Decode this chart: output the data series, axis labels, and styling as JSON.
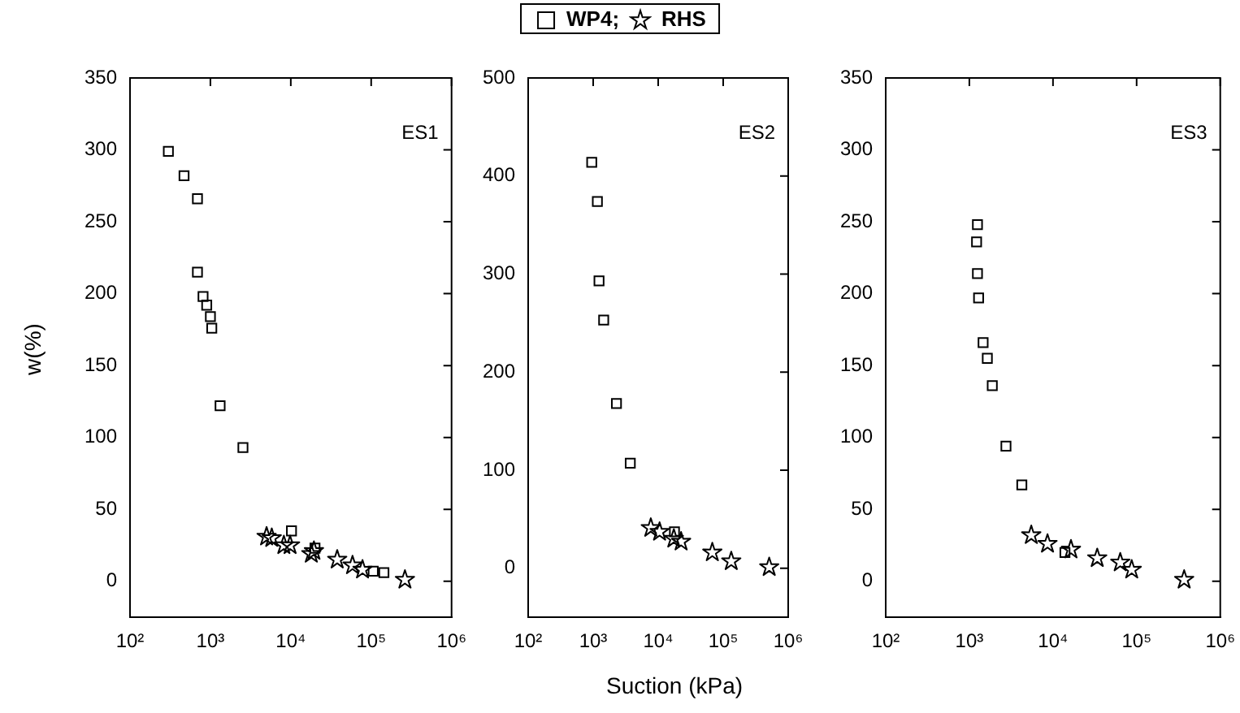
{
  "chart_data": [
    {
      "type": "scatter",
      "ylabel": "w(%)",
      "annotations": [
        "ES1"
      ],
      "legend": "top",
      "grid": false,
      "xlim": [
        100,
        1000000
      ],
      "xticks": [
        {
          "value": 100,
          "label": "10²"
        },
        {
          "value": 1000,
          "label": "10³"
        },
        {
          "value": 10000,
          "label": "10⁴"
        },
        {
          "value": 100000,
          "label": "10⁵"
        },
        {
          "value": 1000000,
          "label": "10⁶"
        }
      ],
      "ylim": [
        -25,
        350
      ],
      "yticks": [
        0,
        50,
        100,
        150,
        200,
        250,
        300,
        350
      ],
      "log": "x",
      "series": [
        {
          "name": "WP4;",
          "color": "#000000",
          "marker": "square",
          "x": [
            300,
            470,
            690,
            690,
            810,
            900,
            1000,
            1040,
            1320,
            2540,
            10200,
            20000,
            106000,
            144000
          ],
          "values": [
            299,
            282,
            266,
            215,
            198,
            192,
            184,
            176,
            122,
            93,
            35,
            23,
            7,
            6
          ]
        },
        {
          "name": "RHS",
          "color": "#000000",
          "marker": "star",
          "x": [
            5000,
            5800,
            8200,
            9800,
            18000,
            19400,
            37800,
            58600,
            78000,
            263000
          ],
          "values": [
            31,
            30,
            25,
            25,
            19,
            21,
            15,
            11,
            8,
            1
          ]
        }
      ]
    },
    {
      "type": "scatter",
      "xlabel": "Suction (kPa)",
      "annotations": [
        "ES2"
      ],
      "grid": false,
      "xlim": [
        100,
        1000000
      ],
      "xticks": [
        {
          "value": 100,
          "label": "10²"
        },
        {
          "value": 1000,
          "label": "10³"
        },
        {
          "value": 10000,
          "label": "10⁴"
        },
        {
          "value": 100000,
          "label": "10⁵"
        },
        {
          "value": 1000000,
          "label": "10⁶"
        }
      ],
      "ylim": [
        -50,
        500
      ],
      "yticks": [
        0,
        100,
        200,
        300,
        400,
        500
      ],
      "log": "x",
      "series": [
        {
          "color": "#000000",
          "marker": "square",
          "x": [
            950,
            1160,
            1230,
            1450,
            2280,
            3720,
            17800
          ],
          "values": [
            414,
            374,
            293,
            253,
            168,
            107,
            37
          ]
        },
        {
          "color": "#000000",
          "marker": "star",
          "x": [
            7700,
            10500,
            17400,
            22500,
            68000,
            133000,
            510000
          ],
          "values": [
            41,
            37,
            30,
            27,
            16,
            7,
            1
          ]
        }
      ]
    },
    {
      "type": "scatter",
      "annotations": [
        "ES3"
      ],
      "grid": false,
      "xlim": [
        100,
        1000000
      ],
      "xticks": [
        {
          "value": 100,
          "label": "10²"
        },
        {
          "value": 1000,
          "label": "10³"
        },
        {
          "value": 10000,
          "label": "10⁴"
        },
        {
          "value": 100000,
          "label": "10⁵"
        },
        {
          "value": 1000000,
          "label": "10⁶"
        }
      ],
      "ylim": [
        -25,
        350
      ],
      "yticks": [
        0,
        50,
        100,
        150,
        200,
        250,
        300,
        350
      ],
      "log": "x",
      "series": [
        {
          "color": "#000000",
          "marker": "square",
          "x": [
            1250,
            1220,
            1250,
            1290,
            1460,
            1640,
            1880,
            2740,
            4240,
            13900
          ],
          "values": [
            248,
            236,
            214,
            197,
            166,
            155,
            136,
            94,
            67,
            20
          ]
        },
        {
          "color": "#000000",
          "marker": "star",
          "x": [
            5500,
            8600,
            16400,
            33800,
            63700,
            87300,
            370000
          ],
          "values": [
            32,
            26,
            22,
            16,
            13,
            8,
            1
          ]
        }
      ]
    }
  ]
}
